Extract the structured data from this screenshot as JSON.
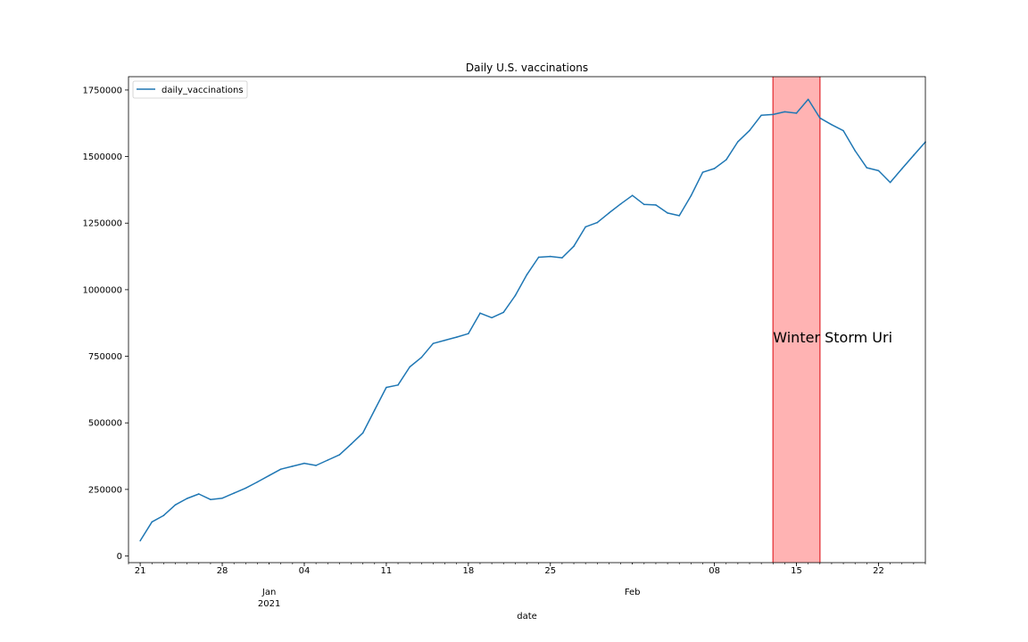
{
  "chart_data": {
    "type": "line",
    "title": "Daily U.S. vaccinations",
    "xlabel": "date",
    "ylabel": "",
    "ylim": [
      -25000,
      1800000
    ],
    "xlim": [
      "2020-12-20",
      "2021-02-26"
    ],
    "grid": false,
    "legend": "top-left",
    "y_ticks": [
      0,
      250000,
      500000,
      750000,
      1000000,
      1250000,
      1500000,
      1750000
    ],
    "x_ticks": [
      {
        "date": "2020-12-21",
        "label": "21",
        "sublabel": ""
      },
      {
        "date": "2020-12-28",
        "label": "28",
        "sublabel": ""
      },
      {
        "date": "2021-01-01",
        "label": "Jan",
        "sublabel": "2021"
      },
      {
        "date": "2021-01-04",
        "label": "04",
        "sublabel": ""
      },
      {
        "date": "2021-01-11",
        "label": "11",
        "sublabel": ""
      },
      {
        "date": "2021-01-18",
        "label": "18",
        "sublabel": ""
      },
      {
        "date": "2021-01-25",
        "label": "25",
        "sublabel": ""
      },
      {
        "date": "2021-02-01",
        "label": "Feb",
        "sublabel": ""
      },
      {
        "date": "2021-02-08",
        "label": "08",
        "sublabel": ""
      },
      {
        "date": "2021-02-15",
        "label": "15",
        "sublabel": ""
      },
      {
        "date": "2021-02-22",
        "label": "22",
        "sublabel": ""
      }
    ],
    "series": [
      {
        "name": "daily_vaccinations",
        "color": "#1f77b4",
        "x": [
          "2020-12-21",
          "2020-12-22",
          "2020-12-23",
          "2020-12-24",
          "2020-12-25",
          "2020-12-26",
          "2020-12-27",
          "2020-12-28",
          "2020-12-29",
          "2020-12-30",
          "2020-12-31",
          "2021-01-01",
          "2021-01-02",
          "2021-01-03",
          "2021-01-04",
          "2021-01-05",
          "2021-01-06",
          "2021-01-07",
          "2021-01-08",
          "2021-01-09",
          "2021-01-10",
          "2021-01-11",
          "2021-01-12",
          "2021-01-13",
          "2021-01-14",
          "2021-01-15",
          "2021-01-16",
          "2021-01-17",
          "2021-01-18",
          "2021-01-19",
          "2021-01-20",
          "2021-01-21",
          "2021-01-22",
          "2021-01-23",
          "2021-01-24",
          "2021-01-25",
          "2021-01-26",
          "2021-01-27",
          "2021-01-28",
          "2021-01-29",
          "2021-01-30",
          "2021-01-31",
          "2021-02-01",
          "2021-02-02",
          "2021-02-03",
          "2021-02-04",
          "2021-02-05",
          "2021-02-06",
          "2021-02-07",
          "2021-02-08",
          "2021-02-09",
          "2021-02-10",
          "2021-02-11",
          "2021-02-12",
          "2021-02-13",
          "2021-02-14",
          "2021-02-15",
          "2021-02-16",
          "2021-02-17",
          "2021-02-18",
          "2021-02-19",
          "2021-02-20",
          "2021-02-21",
          "2021-02-22",
          "2021-02-23",
          "2021-02-24",
          "2021-02-25",
          "2021-02-26"
        ],
        "values": [
          57000,
          128000,
          152000,
          192000,
          216000,
          233000,
          212000,
          217000,
          236000,
          255000,
          278000,
          302000,
          326000,
          337000,
          348000,
          340000,
          360000,
          380000,
          420000,
          462000,
          548000,
          633000,
          642000,
          710000,
          746000,
          798000,
          810000,
          822000,
          835000,
          912000,
          895000,
          915000,
          978000,
          1057000,
          1122000,
          1125000,
          1120000,
          1163000,
          1236000,
          1252000,
          1288000,
          1322000,
          1354000,
          1320000,
          1318000,
          1288000,
          1278000,
          1353000,
          1441000,
          1455000,
          1488000,
          1556000,
          1598000,
          1655000,
          1658000,
          1668000,
          1663000,
          1715000,
          1645000,
          1620000,
          1597000,
          1522000,
          1458000,
          1447000,
          1403000,
          1454000,
          1505000,
          1555000
        ]
      }
    ],
    "shaded_region": {
      "start": "2021-02-13",
      "end": "2021-02-17",
      "fill_color": "#ffb3b3",
      "edge_color": "#e8474b",
      "label": "Winter Storm Uri"
    }
  }
}
